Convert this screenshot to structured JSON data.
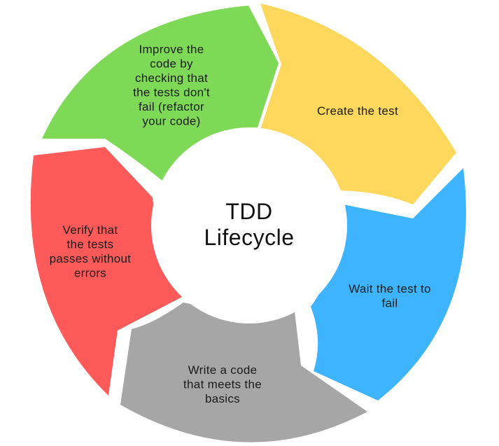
{
  "center": {
    "title_lines": [
      "TDD",
      "Lifecycle"
    ]
  },
  "colors": {
    "background": "#ffffff",
    "center_fill": "#ffffff",
    "create": "#fdd85d",
    "fail": "#3db4fd",
    "write": "#a6a6a6",
    "verify": "#fe5a5a",
    "improve": "#7ed957"
  },
  "steps": [
    {
      "id": "create",
      "lines": [
        "Create the test"
      ],
      "icon": "arrow-segment-yellow"
    },
    {
      "id": "fail",
      "lines": [
        "Wait the test to",
        "fail"
      ],
      "icon": "arrow-segment-blue"
    },
    {
      "id": "write",
      "lines": [
        "Write a code",
        "that meets the",
        "basics"
      ],
      "icon": "arrow-segment-gray"
    },
    {
      "id": "verify",
      "lines": [
        "Verify that",
        "the tests",
        "passes without",
        "errors"
      ],
      "icon": "arrow-segment-red"
    },
    {
      "id": "improve",
      "lines": [
        "Improve the",
        "code by",
        "checking that",
        "the tests don't",
        "fail (refactor",
        "your code)"
      ],
      "icon": "arrow-segment-green"
    }
  ]
}
